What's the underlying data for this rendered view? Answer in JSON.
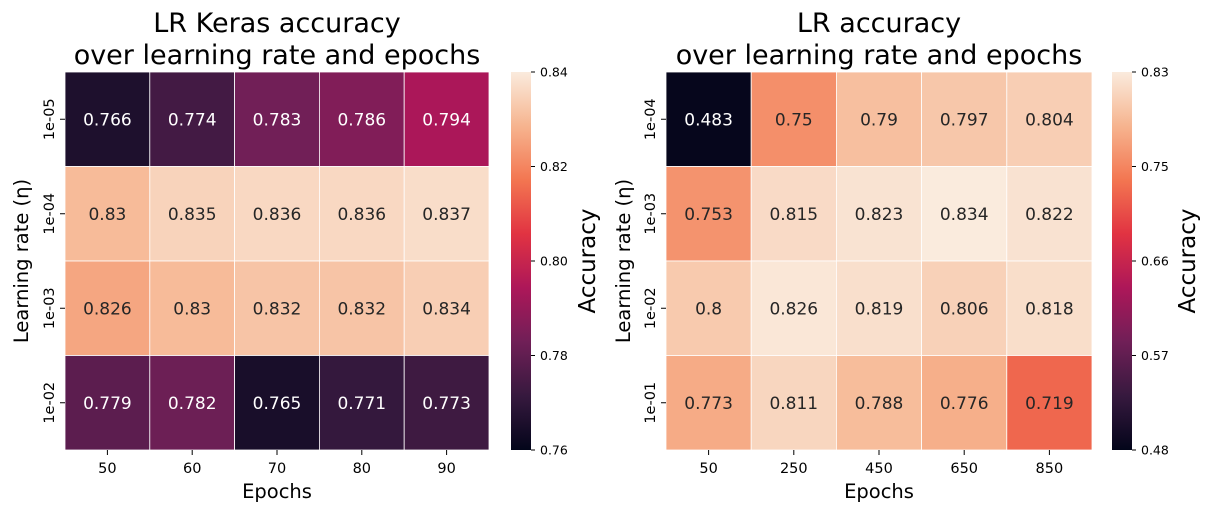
{
  "chart_data": [
    {
      "type": "heatmap",
      "title": "LR Keras accuracy\nover learning rate and epochs",
      "xlabel": "Epochs",
      "ylabel": "Learning rate (η)",
      "colorbar_label": "Accuracy",
      "x": [
        "50",
        "60",
        "70",
        "80",
        "90"
      ],
      "y": [
        "1e-05",
        "1e-04",
        "1e-03",
        "1e-02"
      ],
      "values": [
        [
          0.766,
          0.774,
          0.783,
          0.786,
          0.794
        ],
        [
          0.83,
          0.835,
          0.836,
          0.836,
          0.837
        ],
        [
          0.826,
          0.83,
          0.832,
          0.832,
          0.834
        ],
        [
          0.779,
          0.782,
          0.765,
          0.771,
          0.773
        ]
      ],
      "vmin": 0.76,
      "vmax": 0.84,
      "colorbar_ticks": [
        "0.76",
        "0.78",
        "0.80",
        "0.82",
        "0.84"
      ]
    },
    {
      "type": "heatmap",
      "title": "LR accuracy\nover learning rate and epochs",
      "xlabel": "Epochs",
      "ylabel": "Learning rate (η)",
      "colorbar_label": "Accuracy",
      "x": [
        "50",
        "250",
        "450",
        "650",
        "850"
      ],
      "y": [
        "1e-04",
        "1e-03",
        "1e-02",
        "1e-01"
      ],
      "values": [
        [
          0.483,
          0.75,
          0.79,
          0.797,
          0.804
        ],
        [
          0.753,
          0.815,
          0.823,
          0.834,
          0.822
        ],
        [
          0.8,
          0.826,
          0.819,
          0.806,
          0.818
        ],
        [
          0.773,
          0.811,
          0.788,
          0.776,
          0.719
        ]
      ],
      "vmin": 0.48,
      "vmax": 0.83,
      "colorbar_ticks": [
        "0.48",
        "0.57",
        "0.66",
        "0.75",
        "0.83"
      ]
    }
  ],
  "colormap": [
    "#03051a",
    "#36193e",
    "#701f57",
    "#ad1759",
    "#e13342",
    "#f37651",
    "#f6b48f",
    "#faebdd"
  ]
}
